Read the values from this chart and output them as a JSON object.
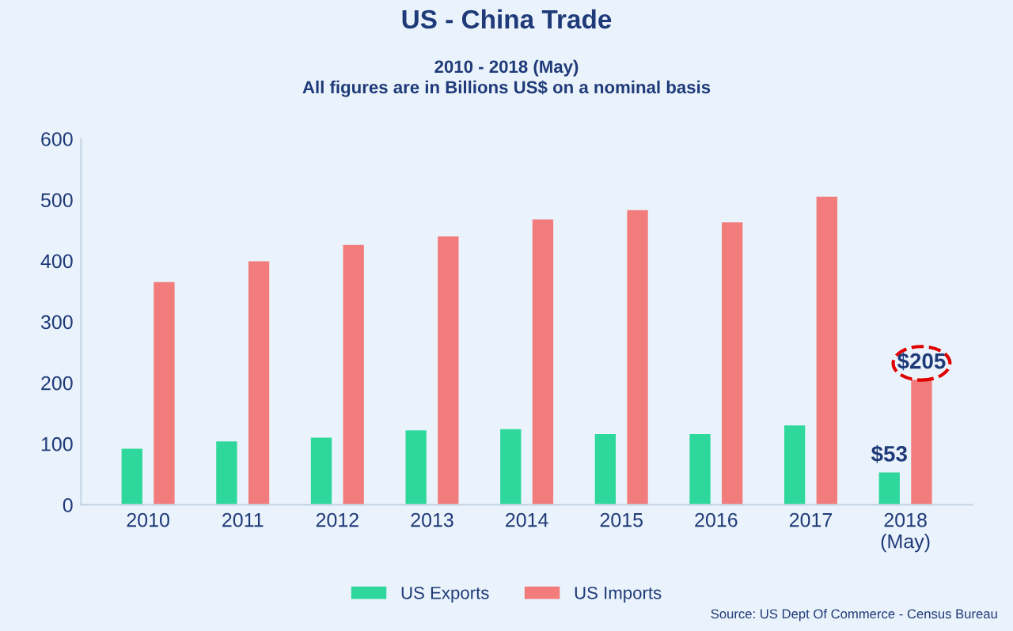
{
  "chart_data": {
    "type": "bar",
    "title": "US - China Trade",
    "subtitle": "2010 - 2018 (May)\nAll figures are in Billions US$ on a nominal basis",
    "categories": [
      "2010",
      "2011",
      "2012",
      "2013",
      "2014",
      "2015",
      "2016",
      "2017",
      "2018\n(May)"
    ],
    "series": [
      {
        "name": "US Exports",
        "color": "#2ed89c",
        "values": [
          92,
          104,
          110,
          122,
          124,
          116,
          116,
          130,
          53
        ],
        "value_labels": [
          null,
          null,
          null,
          null,
          null,
          null,
          null,
          null,
          "$53"
        ]
      },
      {
        "name": "US Imports",
        "color": "#f27b7b",
        "values": [
          365,
          399,
          426,
          440,
          468,
          483,
          463,
          505,
          205
        ],
        "value_labels": [
          null,
          null,
          null,
          null,
          null,
          null,
          null,
          null,
          "$205"
        ]
      }
    ],
    "ylim": [
      0,
      600
    ],
    "yticks": [
      0,
      100,
      200,
      300,
      400,
      500,
      600
    ],
    "grid": false,
    "legend": "bottom",
    "annotations": [
      "Source: US Dept Of Commerce - Census Bureau"
    ]
  }
}
